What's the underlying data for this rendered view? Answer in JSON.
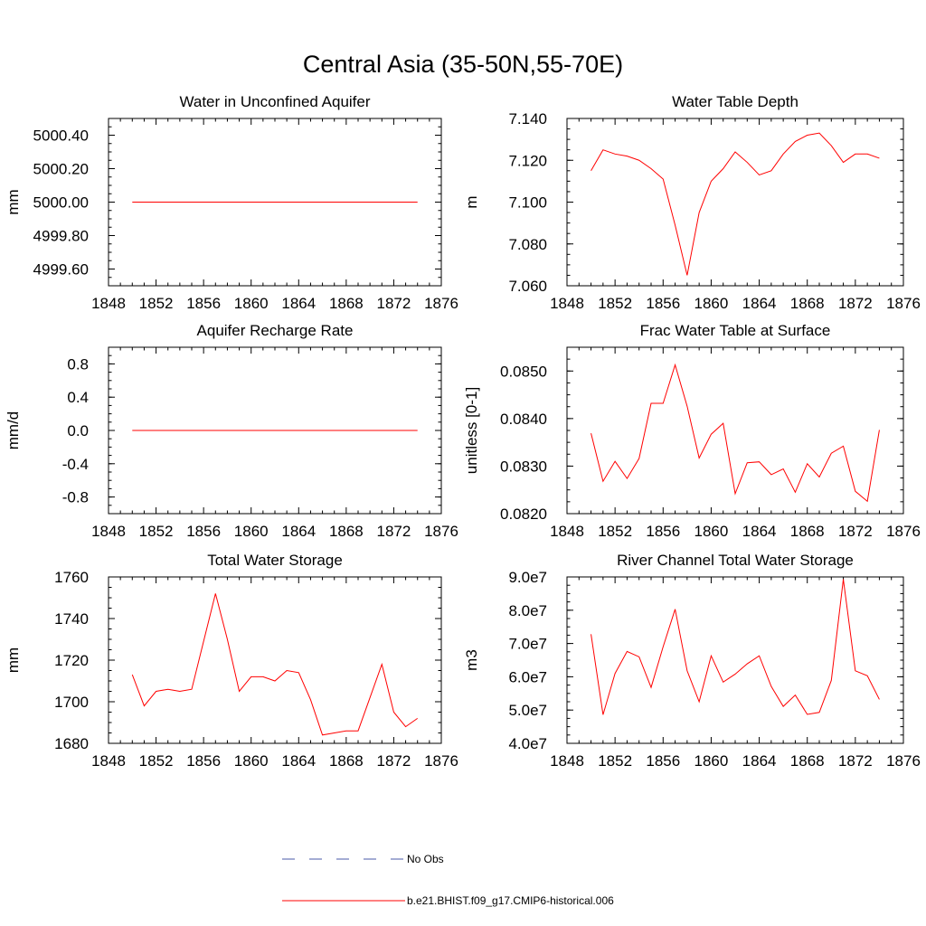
{
  "main_title": "Central Asia (35-50N,55-70E)",
  "colors": {
    "model": "#ff0000",
    "obs": "#4a5aa8",
    "axis": "#000000"
  },
  "legend": {
    "obs_label": "No Obs",
    "model_label": "b.e21.BHIST.f09_g17.CMIP6-historical.006"
  },
  "chart_data": [
    {
      "type": "line",
      "title": "Water in Unconfined Aquifer",
      "ylabel": "mm",
      "xlim": [
        1848,
        1876
      ],
      "ylim": [
        4999.5,
        5000.5
      ],
      "xticks": [
        1848,
        1852,
        1856,
        1860,
        1864,
        1868,
        1872,
        1876
      ],
      "xtick_labels": [
        "1848",
        "1852",
        "1856",
        "1860",
        "1864",
        "1868",
        "1872",
        "1876"
      ],
      "yticks": [
        4999.6,
        4999.8,
        5000.0,
        5000.2,
        5000.4
      ],
      "ytick_labels": [
        "4999.60",
        "4999.80",
        "5000.00",
        "5000.20",
        "5000.40"
      ],
      "x": [
        1850,
        1851,
        1852,
        1853,
        1854,
        1855,
        1856,
        1857,
        1858,
        1859,
        1860,
        1861,
        1862,
        1863,
        1864,
        1865,
        1866,
        1867,
        1868,
        1869,
        1870,
        1871,
        1872,
        1873,
        1874
      ],
      "series": [
        {
          "values": [
            5000,
            5000,
            5000,
            5000,
            5000,
            5000,
            5000,
            5000,
            5000,
            5000,
            5000,
            5000,
            5000,
            5000,
            5000,
            5000,
            5000,
            5000,
            5000,
            5000,
            5000,
            5000,
            5000,
            5000,
            5000
          ]
        }
      ]
    },
    {
      "type": "line",
      "title": "Water Table Depth",
      "ylabel": "m",
      "xlim": [
        1848,
        1876
      ],
      "ylim": [
        7.06,
        7.14
      ],
      "xticks": [
        1848,
        1852,
        1856,
        1860,
        1864,
        1868,
        1872,
        1876
      ],
      "xtick_labels": [
        "1848",
        "1852",
        "1856",
        "1860",
        "1864",
        "1868",
        "1872",
        "1876"
      ],
      "yticks": [
        7.06,
        7.08,
        7.1,
        7.12,
        7.14
      ],
      "ytick_labels": [
        "7.060",
        "7.080",
        "7.100",
        "7.120",
        "7.140"
      ],
      "x": [
        1850,
        1851,
        1852,
        1853,
        1854,
        1855,
        1856,
        1857,
        1858,
        1859,
        1860,
        1861,
        1862,
        1863,
        1864,
        1865,
        1866,
        1867,
        1868,
        1869,
        1870,
        1871,
        1872,
        1873,
        1874
      ],
      "series": [
        {
          "values": [
            7.115,
            7.125,
            7.123,
            7.122,
            7.12,
            7.116,
            7.111,
            7.089,
            7.065,
            7.095,
            7.11,
            7.116,
            7.124,
            7.119,
            7.113,
            7.115,
            7.123,
            7.129,
            7.132,
            7.133,
            7.127,
            7.119,
            7.123,
            7.123,
            7.121
          ]
        }
      ]
    },
    {
      "type": "line",
      "title": "Aquifer Recharge Rate",
      "ylabel": "mm/d",
      "xlim": [
        1848,
        1876
      ],
      "ylim": [
        -1.0,
        1.0
      ],
      "xticks": [
        1848,
        1852,
        1856,
        1860,
        1864,
        1868,
        1872,
        1876
      ],
      "xtick_labels": [
        "1848",
        "1852",
        "1856",
        "1860",
        "1864",
        "1868",
        "1872",
        "1876"
      ],
      "yticks": [
        -0.8,
        -0.4,
        0.0,
        0.4,
        0.8
      ],
      "ytick_labels": [
        "-0.8",
        "-0.4",
        "0.0",
        "0.4",
        "0.8"
      ],
      "x": [
        1850,
        1851,
        1852,
        1853,
        1854,
        1855,
        1856,
        1857,
        1858,
        1859,
        1860,
        1861,
        1862,
        1863,
        1864,
        1865,
        1866,
        1867,
        1868,
        1869,
        1870,
        1871,
        1872,
        1873,
        1874
      ],
      "series": [
        {
          "values": [
            0,
            0,
            0,
            0,
            0,
            0,
            0,
            0,
            0,
            0,
            0,
            0,
            0,
            0,
            0,
            0,
            0,
            0,
            0,
            0,
            0,
            0,
            0,
            0,
            0
          ]
        }
      ]
    },
    {
      "type": "line",
      "title": "Frac Water Table at Surface",
      "ylabel": "unitless [0-1]",
      "xlim": [
        1848,
        1876
      ],
      "ylim": [
        0.082,
        0.0855
      ],
      "xticks": [
        1848,
        1852,
        1856,
        1860,
        1864,
        1868,
        1872,
        1876
      ],
      "xtick_labels": [
        "1848",
        "1852",
        "1856",
        "1860",
        "1864",
        "1868",
        "1872",
        "1876"
      ],
      "yticks": [
        0.082,
        0.083,
        0.084,
        0.085
      ],
      "ytick_labels": [
        "0.0820",
        "0.0830",
        "0.0840",
        "0.0850"
      ],
      "x": [
        1850,
        1851,
        1852,
        1853,
        1854,
        1855,
        1856,
        1857,
        1858,
        1859,
        1860,
        1861,
        1862,
        1863,
        1864,
        1865,
        1866,
        1867,
        1868,
        1869,
        1870,
        1871,
        1872,
        1873,
        1874
      ],
      "series": [
        {
          "values": [
            0.08369,
            0.08268,
            0.0831,
            0.08274,
            0.08316,
            0.08432,
            0.08432,
            0.08513,
            0.08426,
            0.08317,
            0.08367,
            0.0839,
            0.08242,
            0.08307,
            0.08309,
            0.08282,
            0.08294,
            0.08245,
            0.08305,
            0.08277,
            0.08327,
            0.08342,
            0.08247,
            0.08226,
            0.08376
          ]
        }
      ]
    },
    {
      "type": "line",
      "title": "Total Water Storage",
      "ylabel": "mm",
      "xlim": [
        1848,
        1876
      ],
      "ylim": [
        1680,
        1760
      ],
      "xticks": [
        1848,
        1852,
        1856,
        1860,
        1864,
        1868,
        1872,
        1876
      ],
      "xtick_labels": [
        "1848",
        "1852",
        "1856",
        "1860",
        "1864",
        "1868",
        "1872",
        "1876"
      ],
      "yticks": [
        1680,
        1700,
        1720,
        1740,
        1760
      ],
      "ytick_labels": [
        "1680",
        "1700",
        "1720",
        "1740",
        "1760"
      ],
      "x": [
        1850,
        1851,
        1852,
        1853,
        1854,
        1855,
        1856,
        1857,
        1858,
        1859,
        1860,
        1861,
        1862,
        1863,
        1864,
        1865,
        1866,
        1867,
        1868,
        1869,
        1870,
        1871,
        1872,
        1873,
        1874
      ],
      "series": [
        {
          "values": [
            1713,
            1698,
            1705,
            1706,
            1705,
            1706,
            1729,
            1752,
            1730,
            1705,
            1712,
            1712,
            1710,
            1715,
            1714,
            1701,
            1684,
            1685,
            1686,
            1686,
            1702,
            1718,
            1695,
            1688,
            1692
          ]
        }
      ]
    },
    {
      "type": "line",
      "title": "River Channel Total Water Storage",
      "ylabel": "m3",
      "xlim": [
        1848,
        1876
      ],
      "ylim": [
        40000000,
        90000000
      ],
      "xticks": [
        1848,
        1852,
        1856,
        1860,
        1864,
        1868,
        1872,
        1876
      ],
      "xtick_labels": [
        "1848",
        "1852",
        "1856",
        "1860",
        "1864",
        "1868",
        "1872",
        "1876"
      ],
      "yticks": [
        40000000,
        50000000,
        60000000,
        70000000,
        80000000,
        90000000
      ],
      "ytick_labels": [
        "4.0e7",
        "5.0e7",
        "6.0e7",
        "7.0e7",
        "8.0e7",
        "9.0e7"
      ],
      "x": [
        1850,
        1851,
        1852,
        1853,
        1854,
        1855,
        1856,
        1857,
        1858,
        1859,
        1860,
        1861,
        1862,
        1863,
        1864,
        1865,
        1866,
        1867,
        1868,
        1869,
        1870,
        1871,
        1872,
        1873,
        1874
      ],
      "series": [
        {
          "values": [
            72800000,
            48600000,
            61000000,
            67600000,
            66000000,
            56800000,
            69000000,
            80300000,
            61800000,
            52500000,
            66300000,
            58400000,
            60800000,
            63900000,
            66300000,
            57100000,
            51100000,
            54500000,
            48700000,
            49300000,
            58900000,
            89300000,
            61800000,
            60300000,
            53200000
          ]
        }
      ]
    }
  ]
}
